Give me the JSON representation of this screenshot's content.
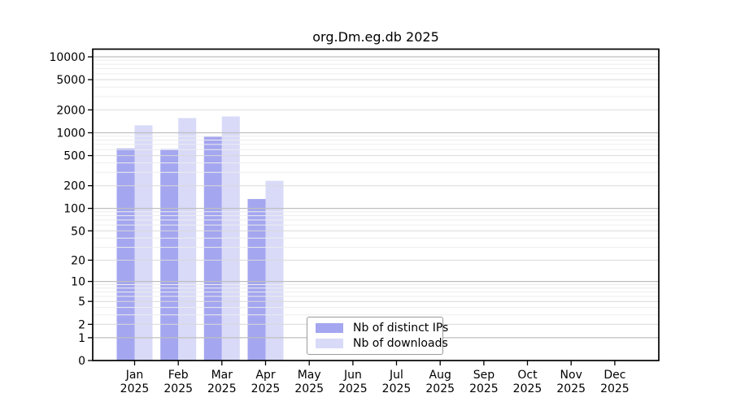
{
  "title": "org.Dm.eg.db 2025",
  "chart_data": {
    "type": "bar",
    "title": "org.Dm.eg.db 2025",
    "categories": [
      "Jan",
      "Feb",
      "Mar",
      "Apr",
      "May",
      "Jun",
      "Jul",
      "Aug",
      "Sep",
      "Oct",
      "Nov",
      "Dec"
    ],
    "year_label": "2025",
    "series": [
      {
        "name": "Nb of distinct IPs",
        "color": "#a4a6f0",
        "values": [
          620,
          610,
          885,
          133,
          null,
          null,
          null,
          null,
          null,
          null,
          null,
          null
        ]
      },
      {
        "name": "Nb of downloads",
        "color": "#d8daf8",
        "values": [
          1250,
          1560,
          1640,
          232,
          null,
          null,
          null,
          null,
          null,
          null,
          null,
          null
        ]
      }
    ],
    "y_axis": {
      "scale": "log10(1+x)",
      "tick_values": [
        10000,
        5000,
        2000,
        1000,
        500,
        200,
        100,
        50,
        20,
        10,
        5,
        2,
        1,
        0
      ],
      "tick_labels": [
        "10000",
        "5000",
        "2000",
        "1000",
        "500",
        "200",
        "100",
        "50",
        "20",
        "10",
        "5",
        "2",
        "1",
        "0"
      ]
    },
    "xlabel": "",
    "ylabel": "",
    "grid": true,
    "legend_position": "inside-bottom-center",
    "colors": {
      "grid_minor": "#ededed",
      "grid_mid": "#d9d9d9",
      "grid_major": "#bfbfbf",
      "axis": "#000000",
      "background": "#ffffff"
    }
  },
  "legend": {
    "items": [
      {
        "label": "Nb of distinct IPs"
      },
      {
        "label": "Nb of downloads"
      }
    ]
  }
}
